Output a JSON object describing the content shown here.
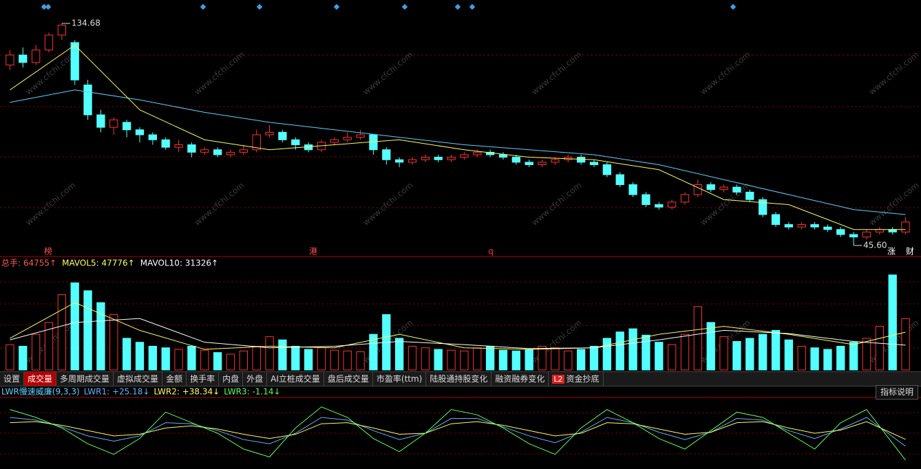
{
  "chart_data": [
    {
      "type": "candlestick",
      "candles": [
        [
          118,
          122,
          124,
          116
        ],
        [
          122,
          119,
          125,
          117
        ],
        [
          119,
          124,
          126,
          118
        ],
        [
          124,
          130,
          131,
          123
        ],
        [
          130,
          134,
          134.68,
          128
        ],
        [
          127,
          112,
          128,
          110
        ],
        [
          110,
          98,
          112,
          96
        ],
        [
          98,
          93,
          100,
          91
        ],
        [
          93,
          96,
          97,
          90
        ],
        [
          95,
          92,
          96,
          89
        ],
        [
          92,
          90,
          93,
          87
        ],
        [
          90,
          88,
          91,
          86
        ],
        [
          88,
          85,
          89,
          84
        ],
        [
          85,
          86,
          88,
          83
        ],
        [
          86,
          83,
          87,
          81
        ],
        [
          83,
          84,
          85,
          82
        ],
        [
          84,
          82,
          85,
          81
        ],
        [
          82,
          83,
          84,
          81
        ],
        [
          83,
          84,
          86,
          82
        ],
        [
          84,
          90,
          92,
          83
        ],
        [
          90,
          91,
          94,
          89
        ],
        [
          91,
          88,
          92,
          87
        ],
        [
          88,
          86,
          89,
          84
        ],
        [
          86,
          84,
          87,
          83
        ],
        [
          84,
          87,
          88,
          83
        ],
        [
          87,
          88,
          89,
          86
        ],
        [
          88,
          89,
          91,
          87
        ],
        [
          89,
          90,
          92,
          88
        ],
        [
          90,
          84,
          90,
          82
        ],
        [
          84,
          80,
          85,
          78
        ],
        [
          80,
          79,
          81,
          77
        ],
        [
          79,
          80,
          81,
          78
        ],
        [
          80,
          81,
          82,
          79
        ],
        [
          81,
          80,
          82,
          79
        ],
        [
          80,
          81,
          82,
          79
        ],
        [
          81,
          82,
          83,
          80
        ],
        [
          82,
          83,
          84,
          81
        ],
        [
          83,
          82,
          84,
          81
        ],
        [
          82,
          81,
          83,
          80
        ],
        [
          81,
          79,
          82,
          78
        ],
        [
          79,
          78,
          80,
          77
        ],
        [
          78,
          79,
          80,
          77
        ],
        [
          79,
          80,
          81,
          78
        ],
        [
          80,
          81,
          82,
          79
        ],
        [
          81,
          79,
          82,
          78
        ],
        [
          79,
          78,
          80,
          77
        ],
        [
          78,
          74,
          79,
          73
        ],
        [
          74,
          70,
          75,
          69
        ],
        [
          70,
          66,
          71,
          65
        ],
        [
          66,
          62,
          67,
          61
        ],
        [
          62,
          61,
          63,
          60
        ],
        [
          61,
          63,
          64,
          60
        ],
        [
          63,
          66,
          67,
          62
        ],
        [
          66,
          70,
          72,
          65
        ],
        [
          70,
          68,
          71,
          67
        ],
        [
          68,
          69,
          70,
          67
        ],
        [
          69,
          67,
          70,
          66
        ],
        [
          67,
          64,
          68,
          63
        ],
        [
          64,
          58,
          65,
          57
        ],
        [
          58,
          54,
          59,
          53
        ],
        [
          54,
          53,
          55,
          52
        ],
        [
          53,
          54,
          55,
          52
        ],
        [
          54,
          53,
          55,
          52
        ],
        [
          53,
          52,
          54,
          51
        ],
        [
          52,
          50,
          53,
          49
        ],
        [
          50,
          49,
          51,
          45.6
        ],
        [
          49,
          51,
          52,
          48
        ],
        [
          51,
          52,
          53,
          50
        ],
        [
          52,
          51,
          53,
          50
        ],
        [
          51,
          55,
          57,
          50
        ]
      ],
      "up_color": "#ff3232",
      "down_color": "#54ffff",
      "ylim": [
        42,
        138
      ],
      "series": [
        {
          "color": "#5ad2ff",
          "x": [
            0,
            5,
            10,
            15,
            20,
            25,
            30,
            35,
            40,
            45,
            50,
            55,
            60,
            65,
            69
          ],
          "values": [
            103,
            108,
            104,
            99,
            95,
            92,
            89,
            86,
            84,
            82,
            78,
            72,
            66,
            60,
            58
          ]
        },
        {
          "color": "#ffff5a",
          "x": [
            0,
            5,
            10,
            15,
            20,
            25,
            30,
            35,
            40,
            45,
            50,
            55,
            60,
            65,
            69
          ],
          "values": [
            108,
            126,
            100,
            88,
            84,
            86,
            88,
            84,
            81,
            80,
            76,
            64,
            62,
            52,
            52
          ]
        }
      ],
      "annotations": [
        {
          "value": 134.68,
          "label": "134.68"
        },
        {
          "value": 45.6,
          "label": "45.60"
        }
      ],
      "markers": [
        "榜",
        "港",
        "q",
        "涨",
        "财"
      ]
    },
    {
      "type": "bar",
      "values": [
        32000,
        30000,
        45000,
        60000,
        95000,
        110000,
        100000,
        85000,
        70000,
        40000,
        35000,
        30000,
        28000,
        26000,
        30000,
        25000,
        22000,
        20000,
        24000,
        30000,
        42000,
        38000,
        30000,
        26000,
        28000,
        25000,
        24000,
        23000,
        45000,
        70000,
        40000,
        30000,
        28000,
        26000,
        25000,
        24000,
        28000,
        30000,
        25000,
        24000,
        26000,
        30000,
        28000,
        24000,
        26000,
        30000,
        40000,
        48000,
        52000,
        44000,
        35000,
        32000,
        45000,
        80000,
        60000,
        42000,
        36000,
        40000,
        45000,
        50000,
        38000,
        30000,
        28000,
        26000,
        30000,
        35000,
        40000,
        55000,
        120000,
        64755
      ],
      "ylim": [
        0,
        125000
      ],
      "legend": [
        {
          "label": "总手: 64755↑",
          "color": "#ff5a5a"
        },
        {
          "label": "MAVOL5: 47776↑",
          "color": "#ffff5a"
        },
        {
          "label": "MAVOL10: 31326↑",
          "color": "#ffffff"
        }
      ],
      "series": [
        {
          "color": "#ffff5a",
          "x": [
            0,
            5,
            10,
            15,
            20,
            25,
            30,
            35,
            40,
            45,
            50,
            55,
            60,
            65,
            69
          ],
          "values": [
            40000,
            85000,
            50000,
            26000,
            30000,
            28000,
            45000,
            28000,
            26000,
            28000,
            45000,
            55000,
            45000,
            32000,
            47776
          ]
        },
        {
          "color": "#ffffff",
          "x": [
            0,
            5,
            10,
            15,
            20,
            25,
            30,
            35,
            40,
            45,
            50,
            55,
            60,
            65,
            69
          ],
          "values": [
            38000,
            60000,
            65000,
            35000,
            28000,
            30000,
            36000,
            32000,
            27000,
            28000,
            38000,
            50000,
            46000,
            36000,
            31326
          ]
        }
      ]
    },
    {
      "type": "line",
      "title": "LWR慢速威廉(9,3,3)",
      "ylim": [
        -10,
        110
      ],
      "x": [
        0,
        2,
        4,
        6,
        8,
        10,
        12,
        14,
        16,
        18,
        20,
        22,
        24,
        26,
        28,
        30,
        32,
        34,
        36,
        38,
        40,
        42,
        44,
        46,
        48,
        50,
        52,
        54,
        56,
        58,
        60,
        62,
        64,
        66,
        69
      ],
      "series": [
        {
          "name": "LWR1",
          "label": "LWR1: +25.18↓",
          "color": "#5ab4ff",
          "values": [
            80,
            75,
            62,
            45,
            35,
            45,
            70,
            68,
            55,
            38,
            30,
            50,
            80,
            75,
            55,
            38,
            50,
            78,
            78,
            62,
            45,
            32,
            52,
            80,
            70,
            52,
            38,
            52,
            78,
            75,
            55,
            40,
            58,
            80,
            25.18
          ]
        },
        {
          "name": "LWR2",
          "label": "LWR2: +38.34↓",
          "color": "#ffff5a",
          "values": [
            70,
            72,
            65,
            55,
            45,
            48,
            60,
            64,
            58,
            48,
            40,
            48,
            68,
            70,
            60,
            48,
            50,
            68,
            72,
            65,
            55,
            45,
            50,
            70,
            68,
            58,
            48,
            52,
            70,
            72,
            60,
            50,
            56,
            72,
            38.34
          ]
        },
        {
          "name": "LWR3",
          "label": "LWR3: -1.14↓",
          "color": "#5aff5a",
          "values": [
            95,
            80,
            60,
            30,
            10,
            40,
            90,
            70,
            50,
            20,
            5,
            60,
            100,
            80,
            40,
            15,
            50,
            95,
            85,
            60,
            30,
            10,
            60,
            95,
            70,
            40,
            20,
            55,
            90,
            80,
            50,
            20,
            70,
            95,
            -1.14
          ]
        }
      ]
    }
  ],
  "tabs": [
    "设置",
    "成交量",
    "多周期成交量",
    "虚拟成交量",
    "金额",
    "换手率",
    "内盘",
    "外盘",
    "AI立桩成交量",
    "盘后成交量",
    "市盈率(ttm)",
    "陆股通持股变化",
    "融资融券变化",
    "资金抄底"
  ],
  "badge": "L2",
  "help": "指标说明",
  "watermark": "www.cfchi.com"
}
